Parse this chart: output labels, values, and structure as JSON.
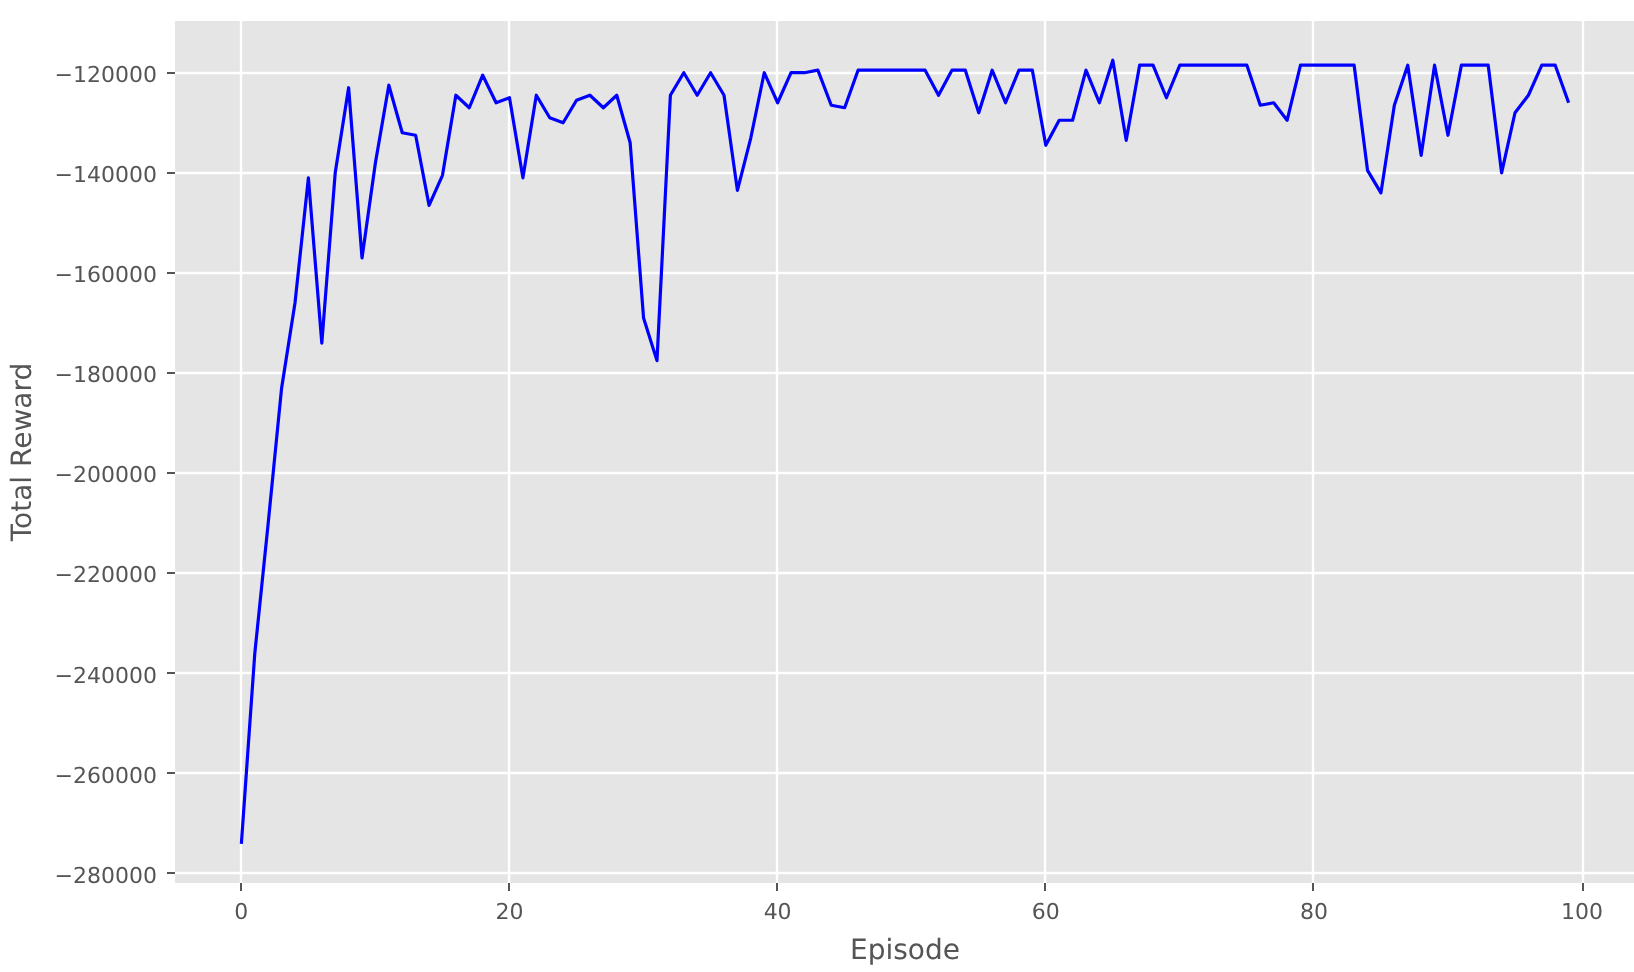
{
  "chart_data": {
    "type": "line",
    "xlabel": "Episode",
    "ylabel": "Total Reward",
    "x": [
      0,
      1,
      2,
      3,
      4,
      5,
      6,
      7,
      8,
      9,
      10,
      11,
      12,
      13,
      14,
      15,
      16,
      17,
      18,
      19,
      20,
      21,
      22,
      23,
      24,
      25,
      26,
      27,
      28,
      29,
      30,
      31,
      32,
      33,
      34,
      35,
      36,
      37,
      38,
      39,
      40,
      41,
      42,
      43,
      44,
      45,
      46,
      47,
      48,
      49,
      50,
      51,
      52,
      53,
      54,
      55,
      56,
      57,
      58,
      59,
      60,
      61,
      62,
      63,
      64,
      65,
      66,
      67,
      68,
      69,
      70,
      71,
      72,
      73,
      74,
      75,
      76,
      77,
      78,
      79,
      80,
      81,
      82,
      83,
      84,
      85,
      86,
      87,
      88,
      89,
      90,
      91,
      92,
      93,
      94,
      95,
      96,
      97,
      98,
      99
    ],
    "series": [
      {
        "color": "#0000ff",
        "values": [
          -274000,
          -236000,
          -210000,
          -183000,
          -166000,
          -141000,
          -174000,
          -140000,
          -123000,
          -157000,
          -138000,
          -122500,
          -132000,
          -132500,
          -146500,
          -140500,
          -124500,
          -127000,
          -120500,
          -126000,
          -125000,
          -141000,
          -124500,
          -129000,
          -130000,
          -125500,
          -124500,
          -127000,
          -124500,
          -134000,
          -169000,
          -177500,
          -124500,
          -120000,
          -124500,
          -120000,
          -124500,
          -143500,
          -133000,
          -120000,
          -126000,
          -120000,
          -120000,
          -119500,
          -126500,
          -127000,
          -119500,
          -119500,
          -119500,
          -119500,
          -119500,
          -119500,
          -124500,
          -119500,
          -119500,
          -128000,
          -119500,
          -126000,
          -119500,
          -119500,
          -134500,
          -129500,
          -129500,
          -119500,
          -126000,
          -117500,
          -133500,
          -118500,
          -118500,
          -125000,
          -118500,
          -118500,
          -118500,
          -118500,
          -118500,
          -118500,
          -126500,
          -126000,
          -129500,
          -118500,
          -118500,
          -118500,
          -118500,
          -118500,
          -139500,
          -144000,
          -126500,
          -118500,
          -136500,
          -118500,
          -132500,
          -118500,
          -118500,
          -118500,
          -140000,
          -128000,
          -124500,
          -118500,
          -118500,
          -126000
        ]
      }
    ],
    "xlim": [
      -4.95,
      103.95
    ],
    "ylim": [
      -281825,
      -109675
    ],
    "xticks": [
      0,
      20,
      40,
      60,
      80,
      100
    ],
    "yticks": [
      -280000,
      -260000,
      -240000,
      -220000,
      -200000,
      -180000,
      -160000,
      -140000,
      -120000
    ],
    "grid": true,
    "line_style": "solid"
  }
}
